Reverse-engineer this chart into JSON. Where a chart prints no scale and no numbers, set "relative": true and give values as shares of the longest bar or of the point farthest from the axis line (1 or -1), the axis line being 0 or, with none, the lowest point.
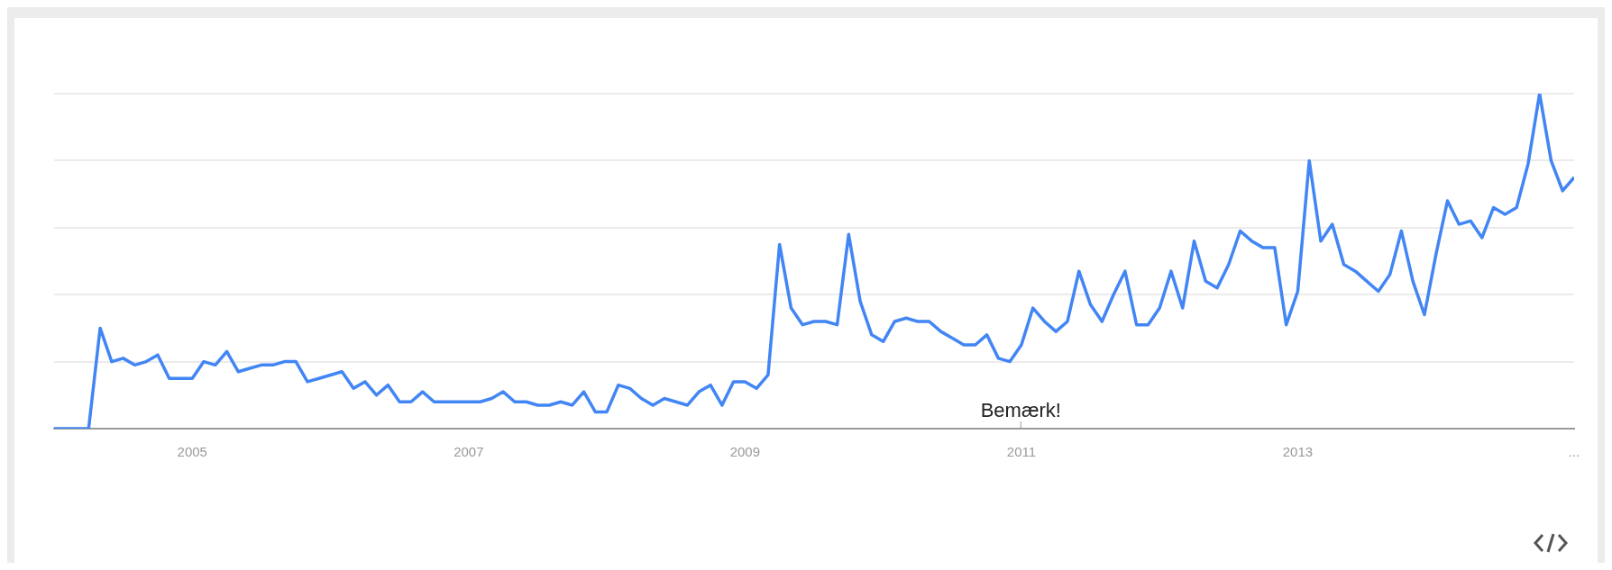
{
  "chart_data": {
    "type": "line",
    "relative": true,
    "x": [
      "2004-01",
      "2004-02",
      "2004-03",
      "2004-04",
      "2004-05",
      "2004-06",
      "2004-07",
      "2004-08",
      "2004-09",
      "2004-10",
      "2004-11",
      "2004-12",
      "2005-01",
      "2005-02",
      "2005-03",
      "2005-04",
      "2005-05",
      "2005-06",
      "2005-07",
      "2005-08",
      "2005-09",
      "2005-10",
      "2005-11",
      "2005-12",
      "2006-01",
      "2006-02",
      "2006-03",
      "2006-04",
      "2006-05",
      "2006-06",
      "2006-07",
      "2006-08",
      "2006-09",
      "2006-10",
      "2006-11",
      "2006-12",
      "2007-01",
      "2007-02",
      "2007-03",
      "2007-04",
      "2007-05",
      "2007-06",
      "2007-07",
      "2007-08",
      "2007-09",
      "2007-10",
      "2007-11",
      "2007-12",
      "2008-01",
      "2008-02",
      "2008-03",
      "2008-04",
      "2008-05",
      "2008-06",
      "2008-07",
      "2008-08",
      "2008-09",
      "2008-10",
      "2008-11",
      "2008-12",
      "2009-01",
      "2009-02",
      "2009-03",
      "2009-04",
      "2009-05",
      "2009-06",
      "2009-07",
      "2009-08",
      "2009-09",
      "2009-10",
      "2009-11",
      "2009-12",
      "2010-01",
      "2010-02",
      "2010-03",
      "2010-04",
      "2010-05",
      "2010-06",
      "2010-07",
      "2010-08",
      "2010-09",
      "2010-10",
      "2010-11",
      "2010-12",
      "2011-01",
      "2011-02",
      "2011-03",
      "2011-04",
      "2011-05",
      "2011-06",
      "2011-07",
      "2011-08",
      "2011-09",
      "2011-10",
      "2011-11",
      "2011-12",
      "2012-01",
      "2012-02",
      "2012-03",
      "2012-04",
      "2012-05",
      "2012-06",
      "2012-07",
      "2012-08",
      "2012-09",
      "2012-10",
      "2012-11",
      "2012-12",
      "2013-01",
      "2013-02",
      "2013-03",
      "2013-04",
      "2013-05",
      "2013-06",
      "2013-07",
      "2013-08",
      "2013-09",
      "2013-10",
      "2013-11",
      "2013-12",
      "2014-01",
      "2014-02",
      "2014-03",
      "2014-04",
      "2014-05",
      "2014-06",
      "2014-07",
      "2014-08",
      "2014-09",
      "2014-10",
      "2014-11",
      "2014-12",
      "2015-01"
    ],
    "series": [
      {
        "color": "#4285f4",
        "values": [
          0,
          0,
          0,
          0,
          0.3,
          0.2,
          0.21,
          0.19,
          0.2,
          0.22,
          0.15,
          0.15,
          0.15,
          0.2,
          0.19,
          0.23,
          0.17,
          0.18,
          0.19,
          0.19,
          0.2,
          0.2,
          0.14,
          0.15,
          0.16,
          0.17,
          0.12,
          0.14,
          0.1,
          0.13,
          0.08,
          0.08,
          0.11,
          0.08,
          0.08,
          0.08,
          0.08,
          0.08,
          0.09,
          0.11,
          0.08,
          0.08,
          0.07,
          0.07,
          0.08,
          0.07,
          0.11,
          0.05,
          0.05,
          0.13,
          0.12,
          0.09,
          0.07,
          0.09,
          0.08,
          0.07,
          0.11,
          0.13,
          0.07,
          0.14,
          0.14,
          0.12,
          0.16,
          0.55,
          0.36,
          0.31,
          0.32,
          0.32,
          0.31,
          0.58,
          0.38,
          0.28,
          0.26,
          0.32,
          0.33,
          0.32,
          0.32,
          0.29,
          0.27,
          0.25,
          0.25,
          0.28,
          0.21,
          0.2,
          0.25,
          0.36,
          0.32,
          0.29,
          0.32,
          0.47,
          0.37,
          0.32,
          0.4,
          0.47,
          0.31,
          0.31,
          0.36,
          0.47,
          0.36,
          0.56,
          0.44,
          0.42,
          0.49,
          0.59,
          0.56,
          0.54,
          0.54,
          0.31,
          0.41,
          0.8,
          0.56,
          0.61,
          0.49,
          0.47,
          0.44,
          0.41,
          0.46,
          0.59,
          0.44,
          0.34,
          0.52,
          0.68,
          0.61,
          0.62,
          0.57,
          0.66,
          0.64,
          0.66,
          0.79,
          1,
          0.8,
          0.71,
          0.75
        ]
      }
    ],
    "xlim": [
      "2004-01",
      "2015-01"
    ],
    "xticks": [
      "2005",
      "2007",
      "2009",
      "2011",
      "2013",
      {
        "value": "2015-01",
        "label": "..."
      }
    ],
    "annotations": [
      "Bemærk!"
    ],
    "grid": "y",
    "legend": false,
    "marker": "none",
    "line_style": "solid"
  }
}
